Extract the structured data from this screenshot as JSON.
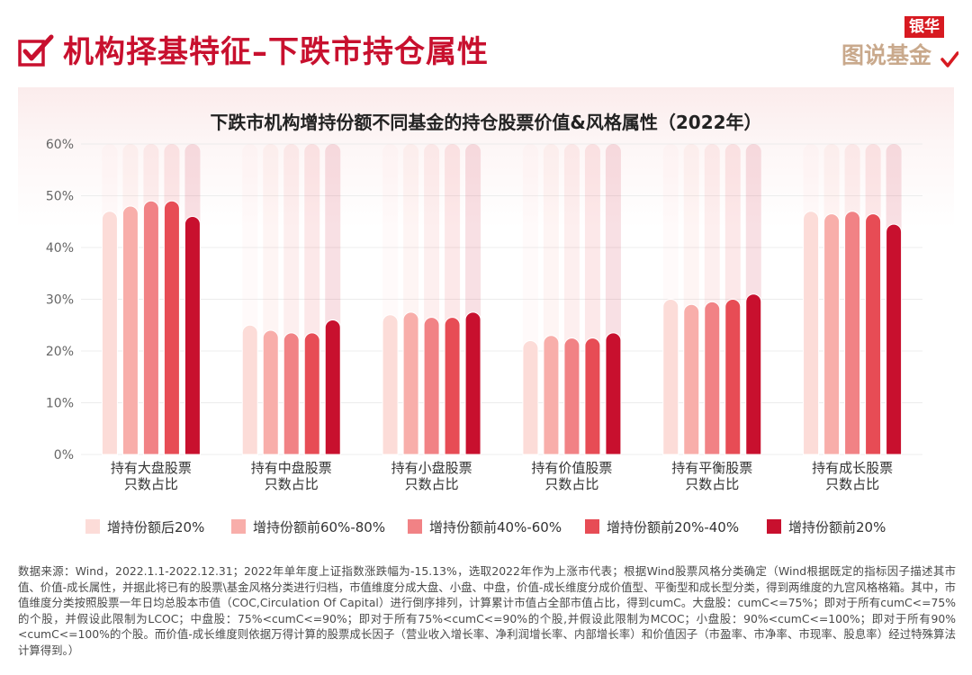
{
  "header": {
    "title": "机构择基特征–下跌市持仓属性",
    "brand_top": "银华",
    "brand_bottom": "图说基金",
    "icons": [
      "check-icon",
      "brand-check-icon"
    ],
    "accent_color": "#c8102e"
  },
  "chart_data": {
    "type": "bar",
    "title": "下跌市机构增持份额不同基金的持仓股票价值&风格属性（2022年）",
    "categories": [
      [
        "持有大盘股票",
        "只数占比"
      ],
      [
        "持有中盘股票",
        "只数占比"
      ],
      [
        "持有小盘股票",
        "只数占比"
      ],
      [
        "持有价值股票",
        "只数占比"
      ],
      [
        "持有平衡股票",
        "只数占比"
      ],
      [
        "持有成长股票",
        "只数占比"
      ]
    ],
    "series": [
      {
        "name": "增持份额后20%",
        "color": "#fcdcd8",
        "values": [
          47,
          25,
          27,
          22,
          30,
          47
        ]
      },
      {
        "name": "增持份额前60%-80%",
        "color": "#f8aeaa",
        "values": [
          48,
          24,
          27.5,
          23,
          29,
          46.5
        ]
      },
      {
        "name": "增持份额前40%-60%",
        "color": "#f18285",
        "values": [
          49,
          23.5,
          26.5,
          22.5,
          29.5,
          47
        ]
      },
      {
        "name": "增持份额前20%-40%",
        "color": "#e74c55",
        "values": [
          49,
          23.5,
          26.5,
          22.5,
          30,
          46.5
        ]
      },
      {
        "name": "增持份额前20%",
        "color": "#c8102e",
        "values": [
          46,
          26,
          27.5,
          23.5,
          31,
          44.5
        ]
      }
    ],
    "yticks": [
      "0%",
      "10%",
      "20%",
      "30%",
      "40%",
      "50%",
      "60%"
    ],
    "ylim": [
      0,
      60
    ],
    "grid": true,
    "legend_position": "bottom"
  },
  "footnote": "数据来源：Wind，2022.1.1-2022.12.31；2022年单年度上证指数涨跌幅为-15.13%，选取2022年作为上涨市代表；根据Wind股票风格分类确定（Wind根据既定的指标因子描述其市值、价值-成长属性，并据此将已有的股票\\基金风格分类进行归档，市值维度分成大盘、小盘、中盘，价值-成长维度分成价值型、平衡型和成长型分类，得到两维度的九宫风格格箱。其中，市值维度分类按照股票一年日均总股本市值（COC,Circulation Of Capital）进行倒序排列，计算累计市值占全部市值占比，得到cumC。大盘股：cumC<=75%；即对于所有cumC<=75%的个股，并假设此限制为LCOC；中盘股：75%<cumC<=90%；即对于所有75%<cumC<=90%的个股,并假设此限制为MCOC；小盘股：90%<cumC<=100%；即对于所有90%<cumC<=100%的个股。而价值-成长维度则依据万得计算的股票成长因子（营业收入增长率、净利润增长率、内部增长率）和价值因子（市盈率、市净率、市现率、股息率）经过特殊算法计算得到。）"
}
